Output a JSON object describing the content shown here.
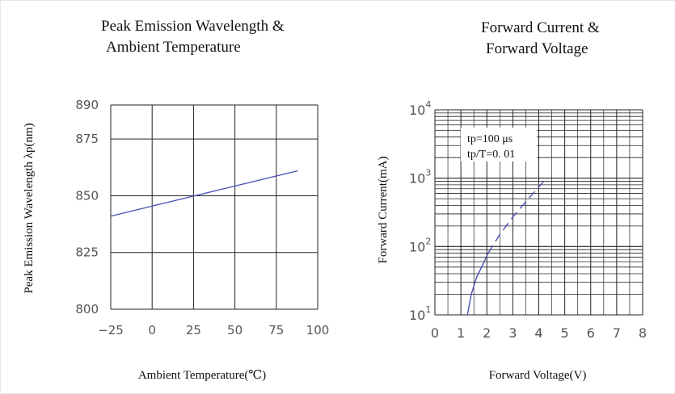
{
  "chart_data": [
    {
      "type": "line",
      "title_lines": [
        "Peak Emission Wavelength &",
        "Ambient Temperature"
      ],
      "xlabel": "Ambient Temperature(℃)",
      "ylabel": "Peak Emission Wavelength λp(nm)",
      "x_ticks": [
        -25,
        0,
        25,
        50,
        75,
        100
      ],
      "y_ticks": [
        800,
        825,
        850,
        875,
        890
      ],
      "xlim": [
        -25,
        100
      ],
      "ylim": [
        800,
        890
      ],
      "grid": true,
      "series": [
        {
          "color": "#4a4fb5",
          "points": [
            [
              -25,
              841
            ],
            [
              88,
              861
            ]
          ]
        }
      ]
    },
    {
      "type": "line",
      "title_lines": [
        "Forward Current &",
        "Forward Voltage"
      ],
      "xlabel": "Forward Voltage(V)",
      "ylabel": "Forward Current(mA)",
      "x_ticks": [
        0,
        1,
        2,
        3,
        4,
        5,
        6,
        7,
        8
      ],
      "y_ticks": [
        10,
        100,
        1000,
        10000
      ],
      "y_tick_labels": [
        {
          "base": "10",
          "exp": "1"
        },
        {
          "base": "10",
          "exp": "2"
        },
        {
          "base": "10",
          "exp": "3"
        },
        {
          "base": "10",
          "exp": "4"
        }
      ],
      "xlim": [
        0,
        8
      ],
      "ylim": [
        10,
        10000
      ],
      "y_scale": "log",
      "grid": true,
      "annotations": [
        "tp=100  μs",
        "tp/T=0. 01"
      ],
      "series": [
        {
          "color": "#4a4fb5",
          "solid": [
            [
              1.25,
              10
            ],
            [
              1.4,
              20
            ],
            [
              1.6,
              35
            ],
            [
              1.85,
              55
            ],
            [
              2.05,
              80
            ]
          ],
          "dashed": [
            [
              2.05,
              80
            ],
            [
              2.5,
              150
            ],
            [
              3.0,
              270
            ],
            [
              3.6,
              500
            ],
            [
              4.3,
              1000
            ]
          ]
        }
      ]
    }
  ]
}
